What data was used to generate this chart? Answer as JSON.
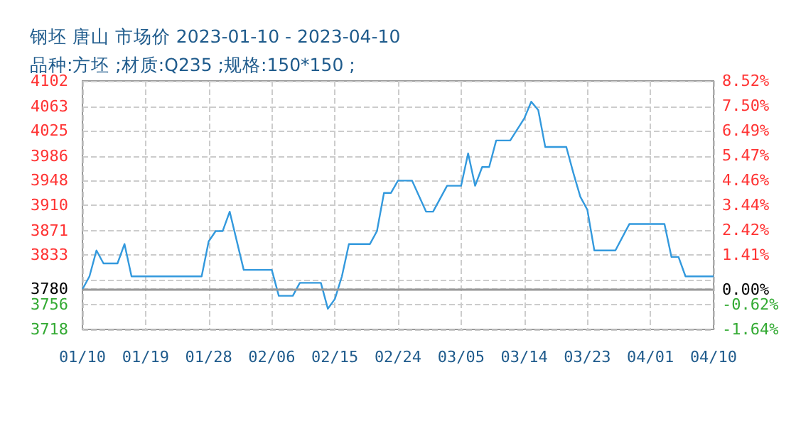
{
  "chart_data": {
    "type": "line",
    "title": "钢坯 唐山 市场价 2023-01-10 - 2023-04-10",
    "subtitle": "品种:方坯 ;材质:Q235 ;规格:150*150 ;",
    "x": [
      "--01-10",
      "--01-11",
      "--01-12",
      "--01-13",
      "--01-15",
      "--01-16",
      "--01-17",
      "--01-27",
      "--01-28",
      "--01-29",
      "--01-30",
      "--01-31",
      "--02-02",
      "--02-06",
      "--02-07",
      "--02-09",
      "--02-10",
      "--02-13",
      "--02-14",
      "--02-15",
      "--02-16",
      "--02-17",
      "--02-20",
      "--02-21",
      "--02-22",
      "--02-23",
      "--02-24",
      "--02-26",
      "--02-28",
      "--03-01",
      "--03-03",
      "--03-05",
      "--03-06",
      "--03-07",
      "--03-08",
      "--03-09",
      "--03-10",
      "--03-12",
      "--03-14",
      "--03-15",
      "--03-16",
      "--03-17",
      "--03-20",
      "--03-21",
      "--03-22",
      "--03-23",
      "--03-24",
      "--03-27",
      "--03-29",
      "--04-03",
      "--04-04",
      "--04-05",
      "--04-06",
      "--04-10"
    ],
    "series": [
      {
        "color": "#3399dd",
        "values": [
          3780,
          3800,
          3840,
          3820,
          3820,
          3850,
          3800,
          3800,
          3854,
          3870,
          3870,
          3900,
          3810,
          3810,
          3770,
          3770,
          3790,
          3790,
          3750,
          3765,
          3800,
          3850,
          3850,
          3870,
          3929,
          3929,
          3948,
          3948,
          3900,
          3900,
          3940,
          3940,
          3990,
          3940,
          3969,
          3969,
          4010,
          4010,
          4044,
          4070,
          4057,
          4000,
          4000,
          3960,
          3923,
          3903,
          3840,
          3840,
          3881,
          3881,
          3830,
          3830,
          3800,
          3800
        ]
      }
    ],
    "xlim": [
      "--01-10",
      "--04-10"
    ],
    "xticks": [
      {
        "value": "--01-10",
        "label": "01/10"
      },
      {
        "value": "--01-19",
        "label": "01/19"
      },
      {
        "value": "--01-28",
        "label": "01/28"
      },
      {
        "value": "--02-06",
        "label": "02/06"
      },
      {
        "value": "--02-15",
        "label": "02/15"
      },
      {
        "value": "--02-24",
        "label": "02/24"
      },
      {
        "value": "--03-05",
        "label": "03/05"
      },
      {
        "value": "--03-14",
        "label": "03/14"
      },
      {
        "value": "--03-23",
        "label": "03/23"
      },
      {
        "value": "--04-01",
        "label": "04/01"
      },
      {
        "value": "--04-10",
        "label": "04/10"
      }
    ],
    "ylim": [
      3718,
      4102
    ],
    "yticks": [
      3718,
      3756,
      3780,
      {
        "value": 3795,
        "label": null
      },
      3833,
      3871,
      3910,
      3948,
      3986,
      4025,
      4063,
      4102
    ],
    "y2lim": [
      -1.64,
      8.52
    ],
    "y2ticks": [
      {
        "value": -1.64,
        "label": "-1.64%"
      },
      {
        "value": -0.62,
        "label": "-0.62%"
      },
      {
        "value": 0,
        "label": "0.00%"
      },
      {
        "value": 1.41,
        "label": "1.41%"
      },
      {
        "value": 2.42,
        "label": "2.42%"
      },
      {
        "value": 3.44,
        "label": "3.44%"
      },
      {
        "value": 4.46,
        "label": "4.46%"
      },
      {
        "value": 5.47,
        "label": "5.47%"
      },
      {
        "value": 6.49,
        "label": "6.49%"
      },
      {
        "value": 7.5,
        "label": "7.50%"
      },
      {
        "value": 8.52,
        "label": "8.52%"
      }
    ],
    "ref_lines": [
      {
        "axis": "y",
        "value": 3780,
        "color": "#999999",
        "line_style": "solid"
      }
    ],
    "grid": true,
    "marker": "none",
    "line_style": "solid"
  }
}
